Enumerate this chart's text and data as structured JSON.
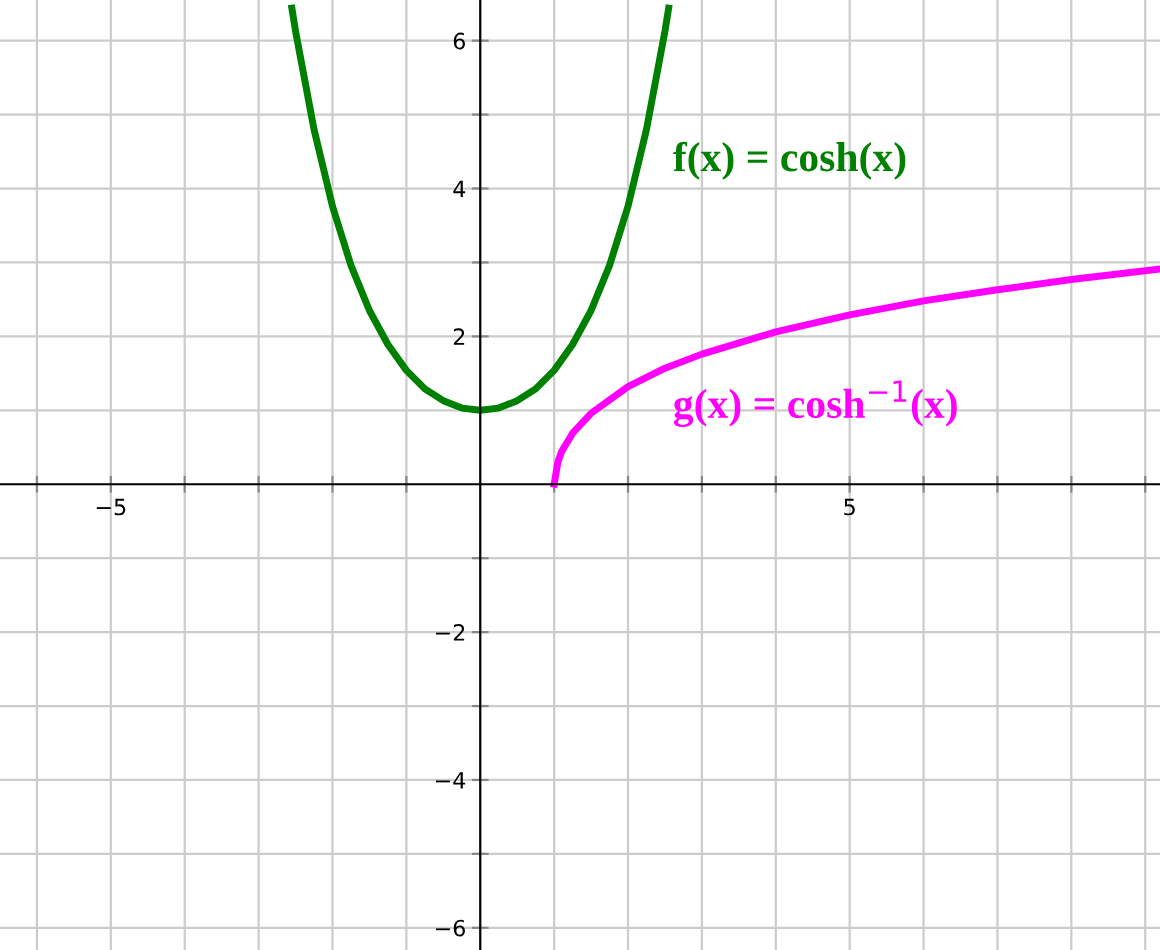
{
  "chart_data": {
    "type": "line",
    "series": [
      {
        "name": null,
        "color": "#008000",
        "x": [
          -2.55,
          -2.5,
          -2.25,
          -2,
          -1.75,
          -1.5,
          -1.25,
          -1,
          -0.75,
          -0.5,
          -0.25,
          0,
          0.25,
          0.5,
          0.75,
          1,
          1.25,
          1.5,
          1.75,
          2,
          2.25,
          2.5,
          2.55
        ],
        "values": [
          6.44,
          6.13,
          4.8,
          3.76,
          2.96,
          2.35,
          1.89,
          1.54,
          1.29,
          1.13,
          1.03,
          1,
          1.03,
          1.13,
          1.29,
          1.54,
          1.89,
          2.35,
          2.96,
          3.76,
          4.8,
          6.13,
          6.44
        ]
      },
      {
        "name": null,
        "color": "#ff00ff",
        "x": [
          1,
          1.05,
          1.1,
          1.25,
          1.5,
          2,
          2.5,
          3,
          4,
          5,
          6,
          7,
          8,
          9.2
        ],
        "values": [
          0,
          0.3,
          0.44,
          0.69,
          0.96,
          1.32,
          1.57,
          1.76,
          2.06,
          2.29,
          2.48,
          2.63,
          2.77,
          2.91
        ]
      }
    ],
    "xlim": [
      -6.5,
      9.2
    ],
    "ylim": [
      -6.3,
      6.55
    ],
    "xticks": [
      {
        "value": -6,
        "label": null
      },
      {
        "value": -5,
        "label": "−5"
      },
      {
        "value": -4,
        "label": null
      },
      {
        "value": -3,
        "label": null
      },
      {
        "value": -2,
        "label": null
      },
      {
        "value": -1,
        "label": null
      },
      {
        "value": 1,
        "label": null
      },
      {
        "value": 2,
        "label": null
      },
      {
        "value": 3,
        "label": null
      },
      {
        "value": 4,
        "label": null
      },
      {
        "value": 5,
        "label": "5"
      },
      {
        "value": 6,
        "label": null
      },
      {
        "value": 7,
        "label": null
      },
      {
        "value": 8,
        "label": null
      },
      {
        "value": 9,
        "label": null
      }
    ],
    "yticks": [
      {
        "value": -6,
        "label": "−6"
      },
      {
        "value": -5,
        "label": null
      },
      {
        "value": -4,
        "label": "−4"
      },
      {
        "value": -3,
        "label": null
      },
      {
        "value": -2,
        "label": "−2"
      },
      {
        "value": -1,
        "label": null
      },
      {
        "value": 1,
        "label": null
      },
      {
        "value": 2,
        "label": "2"
      },
      {
        "value": 3,
        "label": null
      },
      {
        "value": 4,
        "label": "4"
      },
      {
        "value": 5,
        "label": null
      },
      {
        "value": 6,
        "label": "6"
      }
    ],
    "grid": true,
    "line_style": "solid",
    "marker": "none",
    "annotations": [
      "f(x) = cosh(x)",
      "g(x) = cosh$^{−1}$(x)"
    ]
  }
}
